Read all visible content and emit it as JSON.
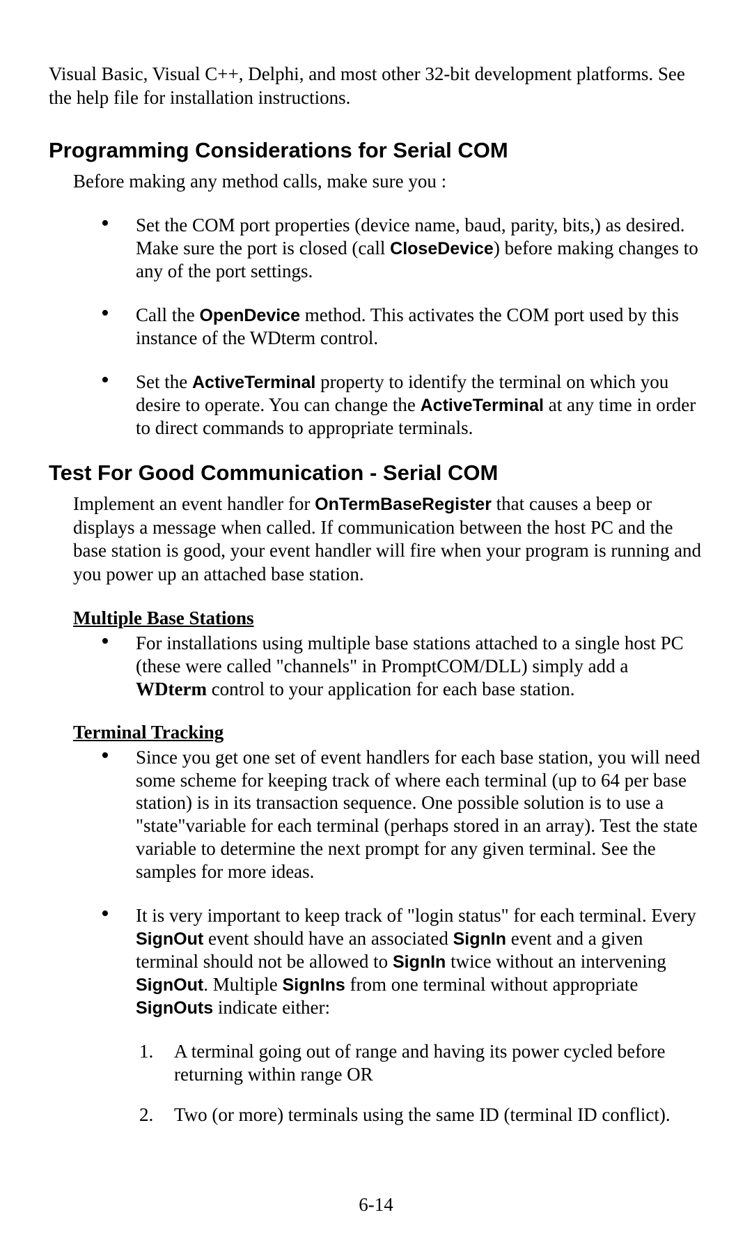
{
  "intro": "Visual Basic, Visual C++, Delphi, and most other 32-bit development platforms. See the help file for installation instructions.",
  "section1": {
    "heading": "Programming Considerations for Serial COM",
    "lead": "Before making any method calls, make sure you :",
    "b1_a": "Set the COM port properties (device name, baud, parity, bits,) as desired. Make sure the port is closed (call ",
    "b1_bold": "CloseDevice",
    "b1_b": ") before making changes to any of the port settings.",
    "b2_a": "Call the ",
    "b2_bold": "OpenDevice",
    "b2_b": " method. This activates the COM port used by this instance of the WDterm control.",
    "b3_a": "Set the ",
    "b3_bold1": "ActiveTerminal",
    "b3_b": " property to identify the terminal on which you desire to operate. You can change the ",
    "b3_bold2": "ActiveTerminal",
    "b3_c": " at any time in order to direct commands to appropriate terminals."
  },
  "section2": {
    "heading": "Test For Good Communication - Serial COM",
    "lead_a": "Implement an event handler for ",
    "lead_bold": "OnTermBaseRegister",
    "lead_b": " that causes a beep or displays a message when called. If communication between the host PC and the base station is good, your event handler will fire when your program is running and you power up an attached base station."
  },
  "sub1": {
    "heading": "Multiple Base Stations",
    "b1_a": "For installations using multiple base stations attached to a single host PC (these were called \"channels\" in PromptCOM/DLL) simply add a ",
    "b1_bold": "WDterm",
    "b1_b": " control to your application for each base station."
  },
  "sub2": {
    "heading": "Terminal Tracking",
    "b1": "Since you get one set of event handlers for each base station, you will need some scheme for keeping track of where each terminal (up to 64 per base station) is in its transaction sequence. One possible solution is to use a \"state\"variable for each terminal (perhaps stored in an array). Test the state variable to determine the next prompt for any given terminal. See the samples for more ideas.",
    "b2_a": "It is very important to keep track of \"login status\" for each terminal. Every ",
    "b2_bold1": "SignOut",
    "b2_b": " event should have an associated ",
    "b2_bold2": "SignIn",
    "b2_c": " event and a given terminal should not be allowed to ",
    "b2_bold3": "SignIn",
    "b2_d": " twice without an intervening ",
    "b2_bold4": "SignOut",
    "b2_e": ". Multiple ",
    "b2_bold5": "SignIns",
    "b2_f": " from one terminal without appropriate ",
    "b2_bold6": "SignOuts",
    "b2_g": " indicate either:",
    "n1": "A terminal going out of range and having its power cycled before returning within range OR",
    "n2": "Two (or more) terminals using the same ID (terminal ID conflict)."
  },
  "footer": "6-14"
}
